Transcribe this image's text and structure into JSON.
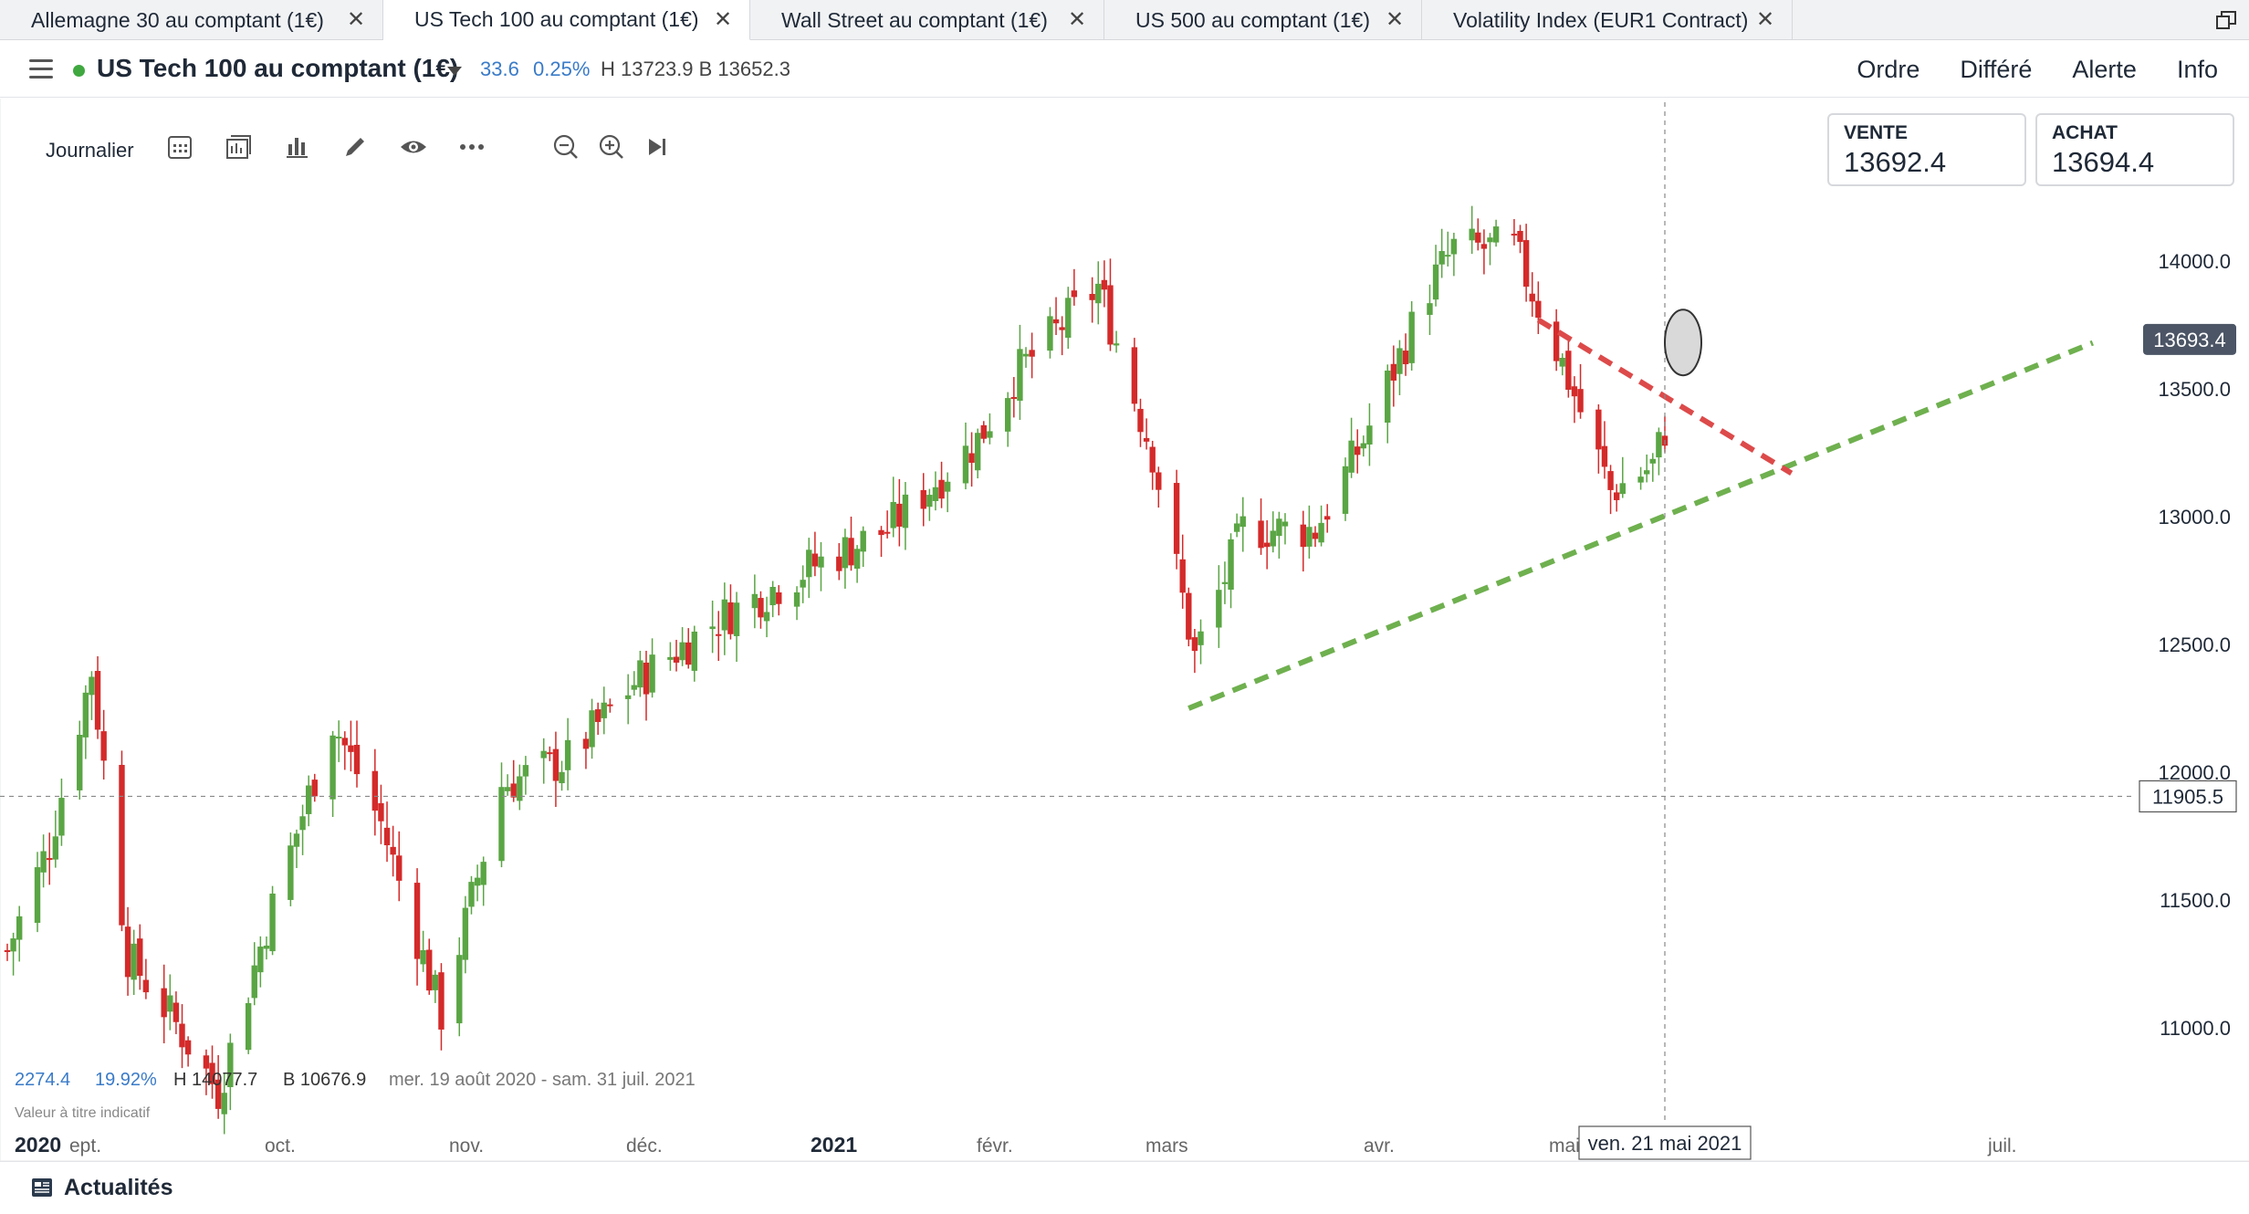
{
  "tabs": [
    {
      "label": "Allemagne 30 au comptant (1€)",
      "active": false
    },
    {
      "label": "US Tech 100 au comptant (1€)",
      "active": true
    },
    {
      "label": "Wall Street au comptant (1€)",
      "active": false
    },
    {
      "label": "US 500 au comptant (1€)",
      "active": false
    },
    {
      "label": "Volatility Index (EUR1 Contract)",
      "active": false
    }
  ],
  "instrument": {
    "name": "US Tech 100 au comptant (1€)",
    "change": "33.6",
    "change_pct": "0.25%",
    "high_low": "H 13723.9  B 13652.3"
  },
  "menu": [
    "Ordre",
    "Différé",
    "Alerte",
    "Info"
  ],
  "toolbar": {
    "timeframe": "Journalier",
    "icons": [
      "calendar-icon",
      "chart-type-icon",
      "indicators-icon",
      "draw-icon",
      "eye-icon",
      "more-icon",
      "zoom-out-icon",
      "zoom-in-icon",
      "skip-to-end-icon"
    ]
  },
  "pricing": {
    "sell_label": "VENTE",
    "sell_value": "13692.4",
    "buy_label": "ACHAT",
    "buy_value": "13694.4"
  },
  "stats": {
    "change": "2274.4",
    "change_pct": "19.92%",
    "high": "H 14077.7",
    "low": "B 10676.9",
    "range": "mer. 19 août 2020 - sam. 31 juil. 2021",
    "indicative": "Valeur à titre indicatif"
  },
  "news": {
    "label": "Actualités"
  },
  "colors": {
    "up": "#5aa544",
    "down": "#d42a2a",
    "accent": "#3a7bc8",
    "trend_up": "#6fb04f",
    "trend_down": "#dd4a4a"
  },
  "chart_data": {
    "type": "candlestick",
    "y_ticks": [
      11000,
      11500,
      12000,
      12500,
      13000,
      13500,
      14000
    ],
    "y_tick_labels": [
      "11000.0",
      "11500.0",
      "12000.0",
      "12500.0",
      "13000.0",
      "13500.0",
      "14000.0"
    ],
    "x_labels": [
      "2020",
      "ept.",
      "oct.",
      "nov.",
      "déc.",
      "2021",
      "févr.",
      "mars",
      "avr.",
      "mai",
      "juil."
    ],
    "current_price_label": "13693.4",
    "current_price": 13693.4,
    "crosshair_price_label": "11905.5",
    "crosshair_price": 11905.5,
    "crosshair_date_label": "ven. 21 mai 2021",
    "anchors": [
      [
        "2020-08-19",
        11300
      ],
      [
        "2020-08-26",
        11720
      ],
      [
        "2020-09-02",
        12400
      ],
      [
        "2020-09-08",
        11280
      ],
      [
        "2020-09-15",
        11050
      ],
      [
        "2020-09-23",
        10750
      ],
      [
        "2020-10-01",
        11400
      ],
      [
        "2020-10-12",
        12200
      ],
      [
        "2020-10-20",
        11800
      ],
      [
        "2020-10-30",
        11050
      ],
      [
        "2020-11-09",
        11950
      ],
      [
        "2020-11-20",
        12050
      ],
      [
        "2020-12-01",
        12350
      ],
      [
        "2020-12-15",
        12600
      ],
      [
        "2020-12-30",
        12800
      ],
      [
        "2021-01-12",
        12950
      ],
      [
        "2021-01-27",
        13300
      ],
      [
        "2021-02-02",
        13550
      ],
      [
        "2021-02-16",
        13900
      ],
      [
        "2021-02-25",
        13250
      ],
      [
        "2021-03-04",
        12450
      ],
      [
        "2021-03-12",
        12950
      ],
      [
        "2021-03-24",
        12950
      ],
      [
        "2021-04-01",
        13300
      ],
      [
        "2021-04-12",
        13900
      ],
      [
        "2021-04-16",
        14050
      ],
      [
        "2021-04-26",
        14050
      ],
      [
        "2021-05-04",
        13600
      ],
      [
        "2021-05-12",
        13100
      ],
      [
        "2021-05-19",
        13200
      ],
      [
        "2021-05-26",
        13700
      ]
    ],
    "trendlines": [
      {
        "kind": "support",
        "from": [
          "2021-03-03",
          12250
        ],
        "to": [
          "2021-07-31",
          13680
        ]
      },
      {
        "kind": "resistance",
        "from": [
          "2021-04-30",
          13770
        ],
        "to": [
          "2021-06-11",
          13170
        ]
      }
    ],
    "highlight": {
      "date": "2021-05-21",
      "price": 13660
    }
  }
}
